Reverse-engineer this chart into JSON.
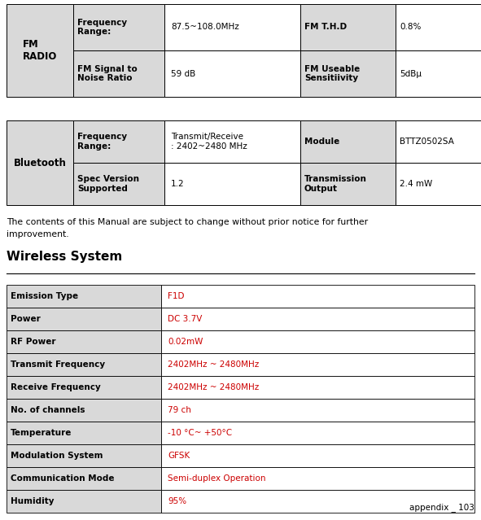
{
  "bg_color": "#ffffff",
  "header_bg": "#d9d9d9",
  "cell_bg": "#ffffff",
  "border_color": "#000000",
  "text_color_black": "#000000",
  "text_color_red": "#cc0000",
  "page_label": "appendix _ 103",
  "fm_radio_section": "FM\nRADIO",
  "fm_rows": [
    {
      "c1": "Frequency\nRange:",
      "c2": "87.5~108.0MHz",
      "c3": "FM T.H.D",
      "c4": "0.8%"
    },
    {
      "c1": "FM Signal to\nNoise Ratio",
      "c2": "59 dB",
      "c3": "FM Useable\nSensitiivity",
      "c4": "5dBμ"
    }
  ],
  "bt_section": "Bluetooth",
  "bt_rows": [
    {
      "c1": "Frequency\nRange:",
      "c2": "Transmit/Receive\n: 2402~2480 MHz",
      "c3": "Module",
      "c4": "BTTZ0502SA"
    },
    {
      "c1": "Spec Version\nSupported",
      "c2": "1.2",
      "c3": "Transmission\nOutput",
      "c4": "2.4 mW"
    }
  ],
  "notice_text": "The contents of this Manual are subject to change without prior notice for further\nimprovement.",
  "wireless_title": "Wireless System",
  "wireless_rows": [
    {
      "label": "Emission Type",
      "value": "F1D"
    },
    {
      "label": "Power",
      "value": "DC 3.7V"
    },
    {
      "label": "RF Power",
      "value": "0.02mW"
    },
    {
      "label": "Transmit Frequency",
      "value": "2402MHz ~ 2480MHz"
    },
    {
      "label": "Receive Frequency",
      "value": "2402MHz ~ 2480MHz"
    },
    {
      "label": "No. of channels",
      "value": "79 ch"
    },
    {
      "label": "Temperature",
      "value": "-10 °C~ +50°C"
    },
    {
      "label": "Modulation System",
      "value": "GFSK"
    },
    {
      "label": "Communication Mode",
      "value": "Semi-duplex Operation"
    },
    {
      "label": "Humidity",
      "value": "95%"
    }
  ]
}
